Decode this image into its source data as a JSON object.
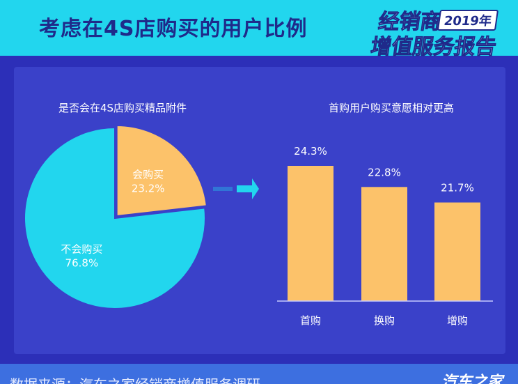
{
  "header": {
    "title": "考虑在4S店购买的用户比例",
    "badge_line1": "经销商",
    "badge_year": "2019年",
    "badge_line2": "增值服务报告"
  },
  "footer": {
    "source": "数据来源：汽车之家经销商增值服务调研",
    "brand": "汽车之家"
  },
  "colors": {
    "cyan": "#22d6ee",
    "orange": "#fcc26a",
    "background": "#2c2fb8",
    "panel": "#3a41c9"
  },
  "chart_data": [
    {
      "type": "pie",
      "title": "是否会在4S店购买精品附件",
      "slices": [
        {
          "label": "会购买",
          "value": 23.2,
          "display": "23.2%",
          "color": "#fcc26a"
        },
        {
          "label": "不会购买",
          "value": 76.8,
          "display": "76.8%",
          "color": "#22d6ee"
        }
      ]
    },
    {
      "type": "bar",
      "title": "首购用户购买意愿相对更高",
      "categories": [
        "首购",
        "换购",
        "增购"
      ],
      "values": [
        24.3,
        22.8,
        21.7
      ],
      "value_labels": [
        "24.3%",
        "22.8%",
        "21.7%"
      ],
      "color": "#fcc26a"
    }
  ]
}
